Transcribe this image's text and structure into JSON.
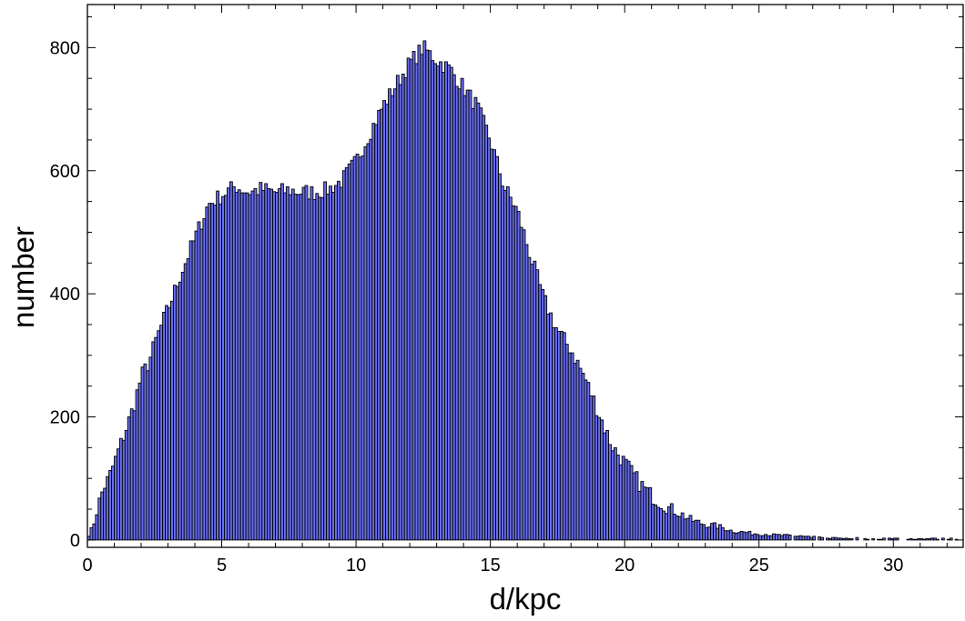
{
  "chart_data": {
    "type": "bar",
    "title": "",
    "xlabel": "d/kpc",
    "ylabel": "number",
    "xlim": [
      0,
      32.6
    ],
    "ylim": [
      -12,
      870
    ],
    "bin_width": 0.1,
    "x_ticks": [
      0,
      5,
      10,
      15,
      20,
      25,
      30
    ],
    "x_tick_labels": [
      "0",
      "5",
      "10",
      "15",
      "20",
      "25",
      "30"
    ],
    "y_ticks": [
      0,
      200,
      400,
      600,
      800
    ],
    "y_tick_labels": [
      "0",
      "200",
      "400",
      "600",
      "800"
    ],
    "grid": false,
    "bar_color": "#6a6ff0",
    "bar_edge_color": "#000000",
    "anchors": [
      [
        0.0,
        5
      ],
      [
        0.2,
        20
      ],
      [
        0.4,
        55
      ],
      [
        0.6,
        85
      ],
      [
        0.8,
        100
      ],
      [
        1.0,
        125
      ],
      [
        1.2,
        150
      ],
      [
        1.4,
        175
      ],
      [
        1.6,
        200
      ],
      [
        1.8,
        230
      ],
      [
        2.0,
        265
      ],
      [
        2.3,
        290
      ],
      [
        2.6,
        330
      ],
      [
        3.0,
        375
      ],
      [
        3.5,
        435
      ],
      [
        4.0,
        490
      ],
      [
        4.5,
        545
      ],
      [
        5.0,
        560
      ],
      [
        5.5,
        575
      ],
      [
        6.0,
        565
      ],
      [
        6.5,
        570
      ],
      [
        7.0,
        565
      ],
      [
        7.5,
        568
      ],
      [
        8.0,
        565
      ],
      [
        8.5,
        565
      ],
      [
        9.0,
        570
      ],
      [
        9.5,
        585
      ],
      [
        10.0,
        615
      ],
      [
        10.5,
        660
      ],
      [
        11.0,
        705
      ],
      [
        11.5,
        740
      ],
      [
        12.0,
        775
      ],
      [
        12.5,
        800
      ],
      [
        13.0,
        780
      ],
      [
        13.5,
        765
      ],
      [
        14.0,
        735
      ],
      [
        14.5,
        705
      ],
      [
        15.0,
        650
      ],
      [
        15.5,
        575
      ],
      [
        16.0,
        535
      ],
      [
        16.5,
        460
      ],
      [
        17.0,
        390
      ],
      [
        17.5,
        340
      ],
      [
        18.0,
        310
      ],
      [
        18.5,
        265
      ],
      [
        19.0,
        210
      ],
      [
        19.5,
        155
      ],
      [
        20.0,
        125
      ],
      [
        20.5,
        95
      ],
      [
        21.0,
        72
      ],
      [
        21.5,
        55
      ],
      [
        22.0,
        45
      ],
      [
        22.5,
        32
      ],
      [
        23.0,
        25
      ],
      [
        23.5,
        22
      ],
      [
        24.0,
        15
      ],
      [
        24.5,
        12
      ],
      [
        25.0,
        10
      ],
      [
        25.5,
        8
      ],
      [
        26.0,
        7
      ],
      [
        26.5,
        6
      ],
      [
        27.0,
        4
      ],
      [
        28.0,
        3
      ],
      [
        29.0,
        3
      ],
      [
        30.0,
        2
      ],
      [
        31.0,
        2
      ],
      [
        32.5,
        2
      ]
    ],
    "noise_amplitude": 14
  }
}
